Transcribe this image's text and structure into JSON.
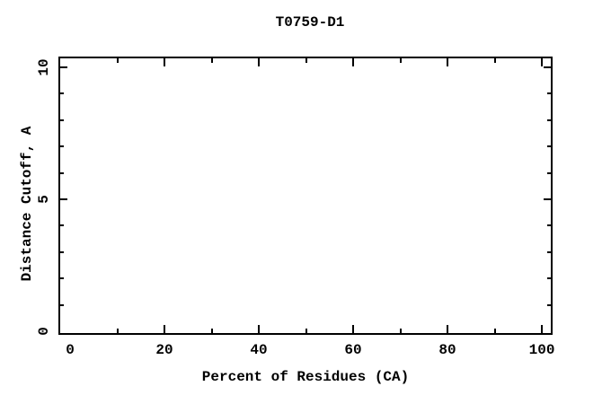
{
  "page": {
    "background_color": "#ffffff",
    "foreground_color": "#000000"
  },
  "chart_data": {
    "type": "line",
    "title": "T0759-D1",
    "xlabel": "Percent of Residues (CA)",
    "ylabel": "Distance Cutoff, A",
    "xlim": [
      -2.1,
      101.9
    ],
    "ylim": [
      -0.07,
      10.34
    ],
    "x_major_tick_values": [
      20,
      40,
      60,
      80,
      100
    ],
    "x_minor_tick_values": [
      10,
      30,
      50,
      70,
      90
    ],
    "x_labels": [
      {
        "v": 0,
        "label": "0"
      },
      {
        "v": 20,
        "label": "20"
      },
      {
        "v": 40,
        "label": "40"
      },
      {
        "v": 60,
        "label": "60"
      },
      {
        "v": 80,
        "label": "80"
      },
      {
        "v": 100,
        "label": "100"
      }
    ],
    "y_major_tick_values": [
      5,
      10
    ],
    "y_minor_tick_values": [
      1,
      2,
      3,
      4,
      6,
      7,
      8,
      9
    ],
    "y_labels": [
      {
        "v": 0,
        "label": "0"
      },
      {
        "v": 5,
        "label": "5"
      },
      {
        "v": 10,
        "label": "10"
      }
    ],
    "series": [],
    "grid": false,
    "legend": "none",
    "frame": "box with mirrored inward ticks",
    "tick_label_rotation_y": -90
  }
}
